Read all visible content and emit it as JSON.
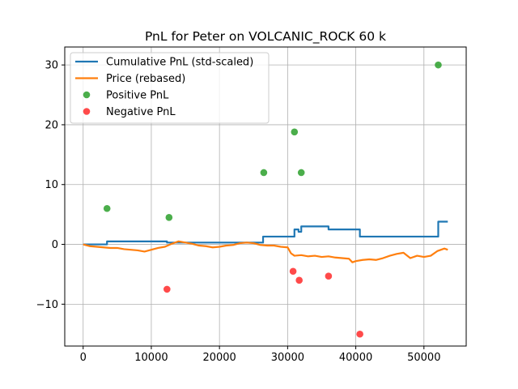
{
  "chart_data": {
    "type": "line",
    "title": "PnL for Peter on VOLCANIC_ROCK 60 k",
    "xlabel": "",
    "ylabel": "",
    "xlim": [
      -2700,
      56200
    ],
    "ylim": [
      -17,
      33
    ],
    "xticks": [
      0,
      10000,
      20000,
      30000,
      40000,
      50000
    ],
    "yticks": [
      -10,
      0,
      10,
      20,
      30
    ],
    "grid": true,
    "legend_position": "upper-left",
    "colors": {
      "cumulative": "#1f77b4",
      "price": "#ff7f0e",
      "positive": "#2ca02c",
      "negative": "#ff2a2a"
    },
    "series": [
      {
        "name": "Cumulative PnL (std-scaled)",
        "kind": "step",
        "x": [
          0,
          3500,
          3500,
          12300,
          12300,
          26400,
          26400,
          31000,
          31000,
          31600,
          31600,
          32000,
          32000,
          36000,
          36000,
          40600,
          40600,
          52100,
          52100,
          53500
        ],
        "y": [
          0,
          0,
          0.5,
          0.5,
          0.3,
          0.3,
          1.3,
          1.3,
          2.5,
          2.5,
          2.1,
          2.1,
          3.0,
          3.0,
          2.5,
          2.5,
          1.3,
          1.3,
          3.8,
          3.8
        ]
      },
      {
        "name": "Price (rebased)",
        "kind": "line",
        "x": [
          0,
          1000,
          2000,
          3000,
          4000,
          5000,
          6000,
          7000,
          8000,
          9000,
          10000,
          11000,
          12000,
          13000,
          14000,
          15000,
          16000,
          17000,
          18000,
          19000,
          20000,
          21000,
          22000,
          23000,
          24000,
          25000,
          26000,
          27000,
          28000,
          29000,
          30000,
          30500,
          31000,
          32000,
          33000,
          34000,
          35000,
          36000,
          37000,
          38000,
          39000,
          39500,
          40000,
          41000,
          42000,
          43000,
          44000,
          45000,
          46000,
          47000,
          48000,
          49000,
          50000,
          51000,
          52000,
          53000,
          53500
        ],
        "y": [
          0,
          -0.3,
          -0.4,
          -0.5,
          -0.6,
          -0.6,
          -0.8,
          -0.9,
          -1.0,
          -1.2,
          -0.9,
          -0.6,
          -0.4,
          0.1,
          0.5,
          0.3,
          0.1,
          -0.2,
          -0.3,
          -0.5,
          -0.4,
          -0.2,
          -0.1,
          0.2,
          0.3,
          0.2,
          -0.1,
          -0.2,
          -0.2,
          -0.4,
          -0.5,
          -1.5,
          -1.9,
          -1.8,
          -2.0,
          -1.9,
          -2.1,
          -2.0,
          -2.2,
          -2.3,
          -2.4,
          -3.0,
          -2.8,
          -2.6,
          -2.5,
          -2.6,
          -2.3,
          -1.9,
          -1.6,
          -1.4,
          -2.3,
          -1.9,
          -2.1,
          -1.9,
          -1.1,
          -0.7,
          -0.9
        ]
      },
      {
        "name": "Positive PnL",
        "kind": "scatter",
        "x": [
          3500,
          12600,
          26500,
          31000,
          32000,
          52100
        ],
        "y": [
          6.0,
          4.5,
          12.0,
          18.8,
          12.0,
          30.0
        ]
      },
      {
        "name": "Negative PnL",
        "kind": "scatter",
        "x": [
          12300,
          30800,
          31700,
          36000,
          40600
        ],
        "y": [
          -7.5,
          -4.5,
          -6.0,
          -5.3,
          -15.0
        ]
      }
    ]
  }
}
